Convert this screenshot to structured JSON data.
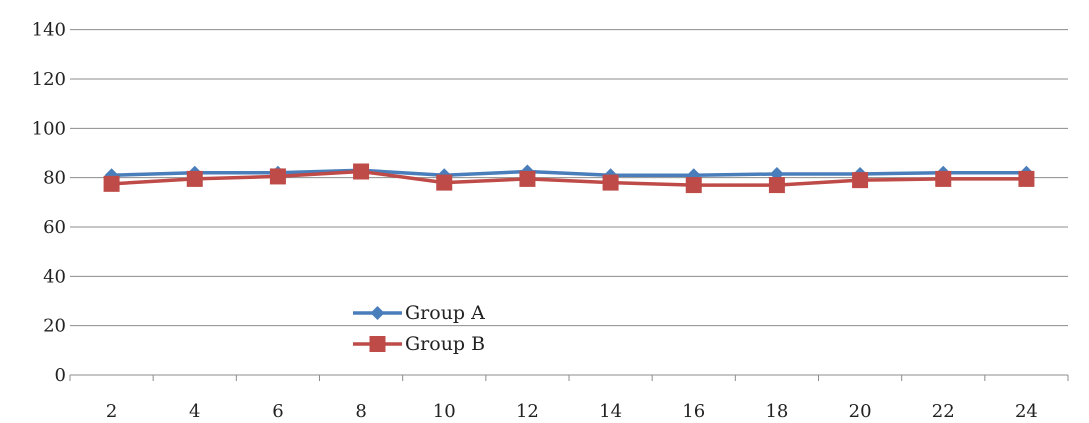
{
  "chart_data": {
    "type": "line",
    "title": "",
    "xlabel": "",
    "ylabel": "",
    "categories": [
      "2",
      "4",
      "6",
      "8",
      "10",
      "12",
      "14",
      "16",
      "18",
      "20",
      "22",
      "24"
    ],
    "ylim": [
      0,
      150
    ],
    "yticks": [
      0,
      20,
      40,
      60,
      80,
      100,
      120,
      140
    ],
    "grid": "horizontal",
    "legend_position": "inside-bottom-left",
    "series": [
      {
        "name": "Group A",
        "color": "#4a7ebb",
        "marker": "diamond",
        "values": [
          81,
          82,
          82,
          83,
          81,
          82.5,
          81,
          81,
          81.5,
          81.5,
          82,
          82
        ]
      },
      {
        "name": "Group B",
        "color": "#be4b48",
        "marker": "square",
        "values": [
          77.5,
          79.5,
          80.5,
          82.5,
          78,
          79.5,
          78,
          77,
          77,
          79,
          79.5,
          79.5
        ]
      }
    ]
  }
}
